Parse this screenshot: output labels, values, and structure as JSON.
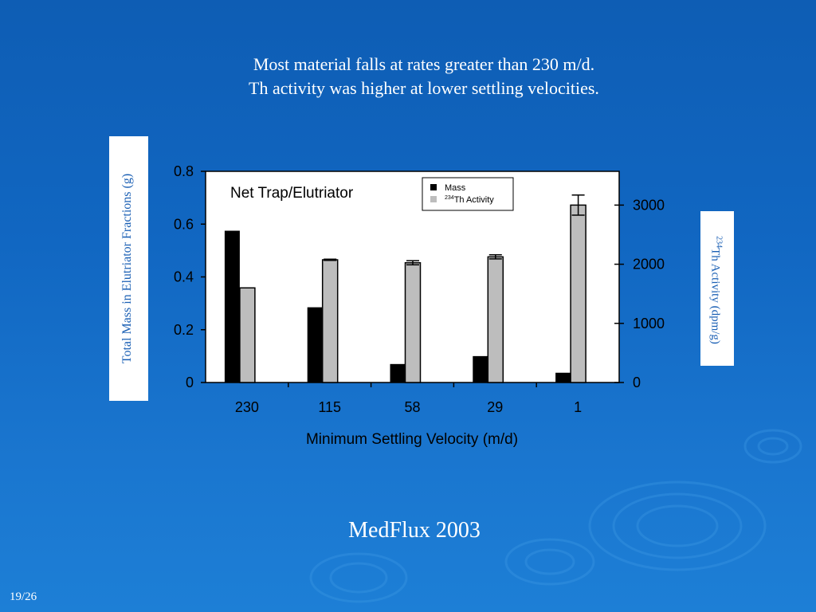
{
  "slide": {
    "title_line1": "Most material falls at rates greater than 230 m/d.",
    "title_line2": "Th activity was higher at lower settling velocities.",
    "footer": "MedFlux 2003",
    "page": "19/26",
    "background_color": "#1167c2"
  },
  "chart_data": {
    "type": "bar",
    "title": "Net Trap/Elutriator",
    "categories": [
      "230",
      "115",
      "58",
      "29",
      "1"
    ],
    "xlabel": "Minimum Settling Velocity (m/d)",
    "ylabel": "Total Mass in Elutriator Fractions (g)",
    "y2label": {
      "superscript": "234",
      "text": "Th Activity (dpm/g)"
    },
    "ylim": [
      0,
      0.8
    ],
    "y2lim": [
      0,
      3571
    ],
    "yticks": [
      "0",
      "0.2",
      "0.4",
      "0.6",
      "0.8"
    ],
    "y2ticks": [
      "0",
      "1000",
      "2000",
      "3000"
    ],
    "legend_position": "top-right",
    "series": [
      {
        "name": "Mass",
        "axis": "left",
        "color": "#000000",
        "values": [
          0.575,
          0.285,
          0.07,
          0.1,
          0.037
        ]
      },
      {
        "name": "Th Activity",
        "name_superscript": "234",
        "axis": "right",
        "color": "#bdbdbd",
        "values": [
          1600,
          2075,
          2025,
          2125,
          3000
        ],
        "errors": [
          0,
          10,
          35,
          35,
          170
        ]
      }
    ]
  }
}
